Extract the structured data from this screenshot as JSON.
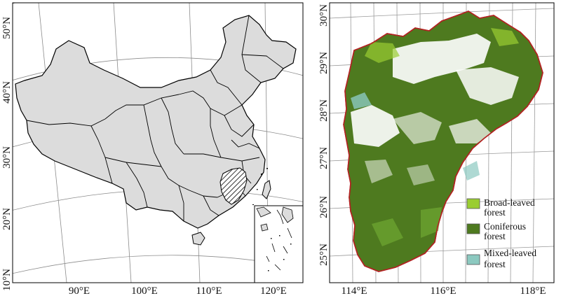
{
  "left_map": {
    "lat_labels": [
      "50°N",
      "40°N",
      "30°N",
      "20°N",
      "10°N"
    ],
    "lon_labels": [
      "90°E",
      "100°E",
      "110°E",
      "120°E"
    ]
  },
  "right_map": {
    "lat_labels": [
      "30°N",
      "29°N",
      "28°N",
      "27°N",
      "26°N",
      "25°N"
    ],
    "lon_labels": [
      "114°E",
      "116°E",
      "118°E"
    ],
    "legend": [
      {
        "line1": "Broad-leaved",
        "line2": "forest",
        "color": "#9acd32"
      },
      {
        "line1": "Coniferous",
        "line2": "forest",
        "color": "#4e7a1f"
      },
      {
        "line1": "Mixed-leaved",
        "line2": "forest",
        "color": "#8cc9c0"
      }
    ]
  },
  "colors": {
    "land": "#dcdcdc",
    "border": "#000000",
    "boundary_red": "#b22222",
    "grid": "#8c8c8c"
  }
}
